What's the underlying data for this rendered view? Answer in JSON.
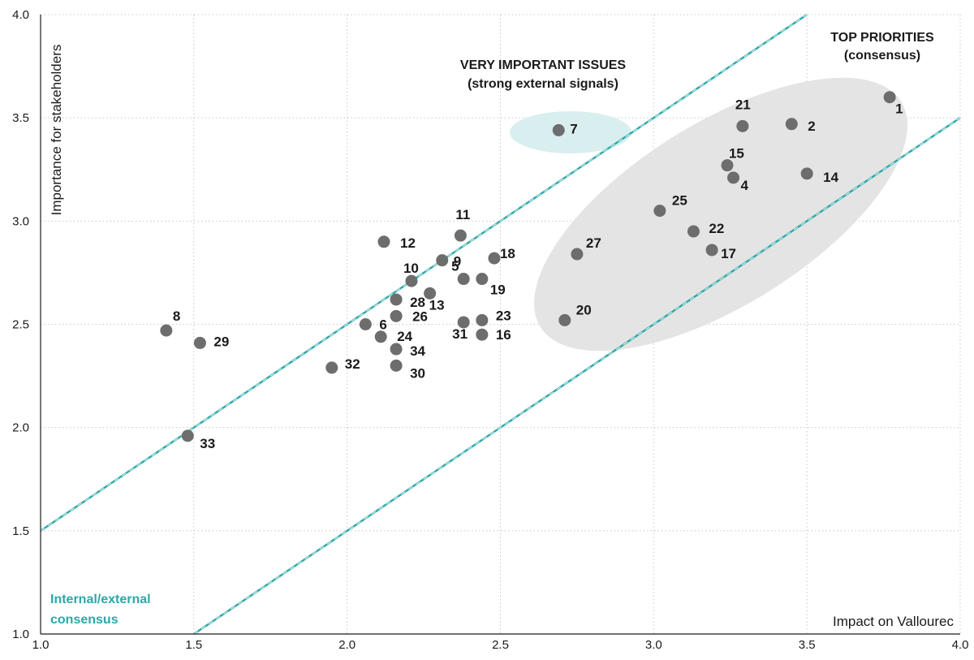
{
  "chart_data": {
    "type": "scatter",
    "xlabel": "Impact on Vallourec",
    "ylabel": "Importance for stakeholders",
    "xlim": [
      1.0,
      4.0
    ],
    "ylim": [
      1.0,
      4.0
    ],
    "x_ticks": [
      "1.0",
      "1.5",
      "2.0",
      "2.5",
      "3.0",
      "3.5",
      "4.0"
    ],
    "y_ticks": [
      "1.0",
      "1.5",
      "2.0",
      "2.5",
      "3.0",
      "3.5",
      "4.0"
    ],
    "grid": true,
    "points": [
      {
        "label": "1",
        "x": 3.77,
        "y": 3.6
      },
      {
        "label": "2",
        "x": 3.45,
        "y": 3.47
      },
      {
        "label": "4",
        "x": 3.26,
        "y": 3.21
      },
      {
        "label": "5",
        "x": 2.38,
        "y": 2.72
      },
      {
        "label": "6",
        "x": 2.06,
        "y": 2.5
      },
      {
        "label": "7",
        "x": 2.69,
        "y": 3.44
      },
      {
        "label": "8",
        "x": 1.41,
        "y": 2.47
      },
      {
        "label": "9",
        "x": 2.31,
        "y": 2.81
      },
      {
        "label": "10",
        "x": 2.21,
        "y": 2.71
      },
      {
        "label": "11",
        "x": 2.37,
        "y": 2.93
      },
      {
        "label": "12",
        "x": 2.12,
        "y": 2.9
      },
      {
        "label": "13",
        "x": 2.27,
        "y": 2.65
      },
      {
        "label": "14",
        "x": 3.5,
        "y": 3.23
      },
      {
        "label": "15",
        "x": 3.24,
        "y": 3.27
      },
      {
        "label": "16",
        "x": 2.44,
        "y": 2.45
      },
      {
        "label": "17",
        "x": 3.19,
        "y": 2.86
      },
      {
        "label": "18",
        "x": 2.48,
        "y": 2.82
      },
      {
        "label": "19",
        "x": 2.44,
        "y": 2.72
      },
      {
        "label": "20",
        "x": 2.71,
        "y": 2.52
      },
      {
        "label": "21",
        "x": 3.29,
        "y": 3.46
      },
      {
        "label": "22",
        "x": 3.13,
        "y": 2.95
      },
      {
        "label": "23",
        "x": 2.44,
        "y": 2.52
      },
      {
        "label": "24",
        "x": 2.11,
        "y": 2.44
      },
      {
        "label": "25",
        "x": 3.02,
        "y": 3.05
      },
      {
        "label": "26",
        "x": 2.16,
        "y": 2.54
      },
      {
        "label": "27",
        "x": 2.75,
        "y": 2.84
      },
      {
        "label": "28",
        "x": 2.16,
        "y": 2.62
      },
      {
        "label": "29",
        "x": 1.52,
        "y": 2.41
      },
      {
        "label": "30",
        "x": 2.16,
        "y": 2.3
      },
      {
        "label": "31",
        "x": 2.38,
        "y": 2.51
      },
      {
        "label": "32",
        "x": 1.95,
        "y": 2.29
      },
      {
        "label": "33",
        "x": 1.48,
        "y": 1.96
      },
      {
        "label": "34",
        "x": 2.16,
        "y": 2.38
      }
    ],
    "consensus_lines": [
      {
        "x1": 1.0,
        "y1": 1.5,
        "x2": 3.5,
        "y2": 4.0
      },
      {
        "x1": 1.5,
        "y1": 1.0,
        "x2": 4.0,
        "y2": 3.5
      }
    ],
    "annotations": {
      "top_priorities": [
        "TOP PRIORITIES",
        "(consensus)"
      ],
      "very_important": [
        "VERY IMPORTANT ISSUES",
        "(strong external signals)"
      ],
      "consensus": [
        "Internal/external",
        "consensus"
      ]
    },
    "colors": {
      "point": "#6d6d6d",
      "consensus_line": "#2aa8a8",
      "top_priorities_area": "#e4e4e4",
      "very_important_area": "#d9efef",
      "grid": "#c8c8c8"
    }
  }
}
